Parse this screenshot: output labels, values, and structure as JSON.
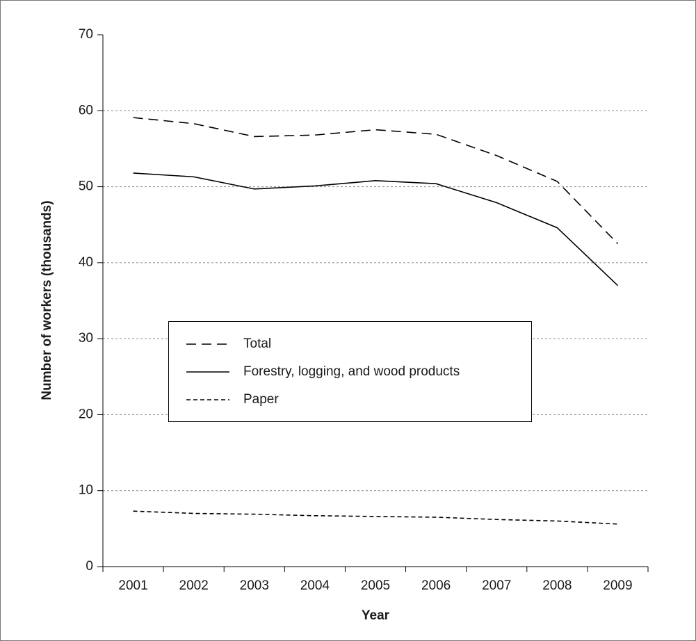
{
  "chart_data": {
    "type": "line",
    "x_label": "Year",
    "y_label": "Number of workers (thousands)",
    "categories": [
      "2001",
      "2002",
      "2003",
      "2004",
      "2005",
      "2006",
      "2007",
      "2008",
      "2009"
    ],
    "series": [
      {
        "name": "Total",
        "color": "#000000",
        "dash": "long",
        "values": [
          59.1,
          58.3,
          56.6,
          56.8,
          57.5,
          56.9,
          54.1,
          50.7,
          42.5
        ]
      },
      {
        "name": "Forestry, logging, and wood products",
        "color": "#000000",
        "dash": "solid",
        "values": [
          51.8,
          51.3,
          49.7,
          50.1,
          50.8,
          50.4,
          47.9,
          44.6,
          37.0
        ]
      },
      {
        "name": "Paper",
        "color": "#000000",
        "dash": "short",
        "values": [
          7.3,
          7.0,
          6.9,
          6.7,
          6.6,
          6.5,
          6.2,
          6.0,
          5.6
        ]
      }
    ],
    "ylim": [
      0,
      70
    ],
    "yticks": [
      0,
      10,
      20,
      30,
      40,
      50,
      60,
      70
    ],
    "grid": true,
    "legend": "center-left"
  }
}
